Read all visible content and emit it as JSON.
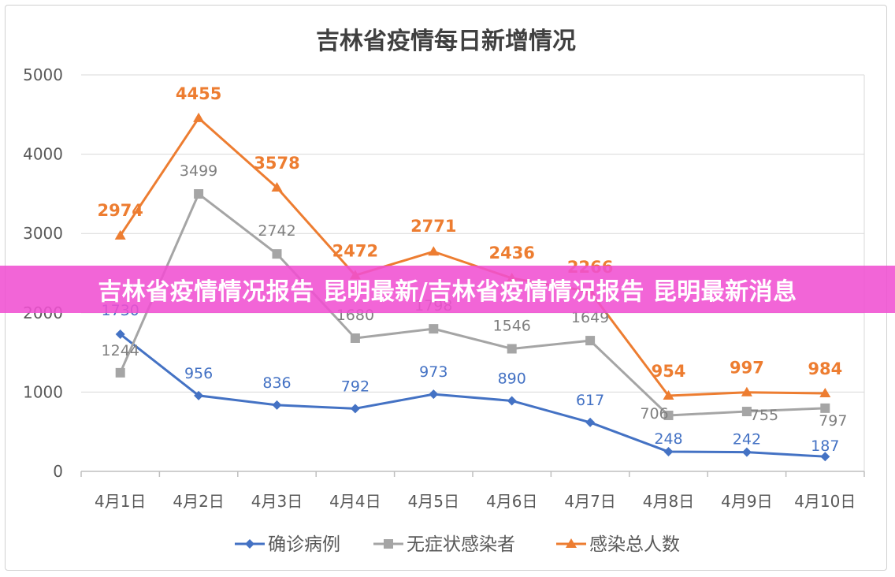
{
  "chart_data": {
    "type": "line",
    "title": "吉林省疫情每日新增情况",
    "categories": [
      "4月1日",
      "4月2日",
      "4月3日",
      "4月4日",
      "4月5日",
      "4月6日",
      "4月7日",
      "4月8日",
      "4月9日",
      "4月10日"
    ],
    "ylim": [
      0,
      5000
    ],
    "yticks": [
      0,
      1000,
      2000,
      3000,
      4000,
      5000
    ],
    "grid": true,
    "legend_position": "bottom",
    "series": [
      {
        "name": "确诊病例",
        "color": "#4472c4",
        "marker": "diamond",
        "values": [
          1730,
          956,
          836,
          792,
          973,
          890,
          617,
          248,
          242,
          187
        ]
      },
      {
        "name": "无症状感染者",
        "color": "#a5a5a5",
        "marker": "square",
        "values": [
          1244,
          3499,
          2742,
          1680,
          1798,
          1546,
          1649,
          706,
          755,
          797
        ]
      },
      {
        "name": "感染总人数",
        "color": "#ed7d31",
        "marker": "triangle",
        "values": [
          2974,
          4455,
          3578,
          2472,
          2771,
          2436,
          2266,
          954,
          997,
          984
        ]
      }
    ]
  },
  "banner": {
    "text": "吉林省疫情情况报告 昆明最新/吉林省疫情情况报告 昆明最新消息"
  }
}
